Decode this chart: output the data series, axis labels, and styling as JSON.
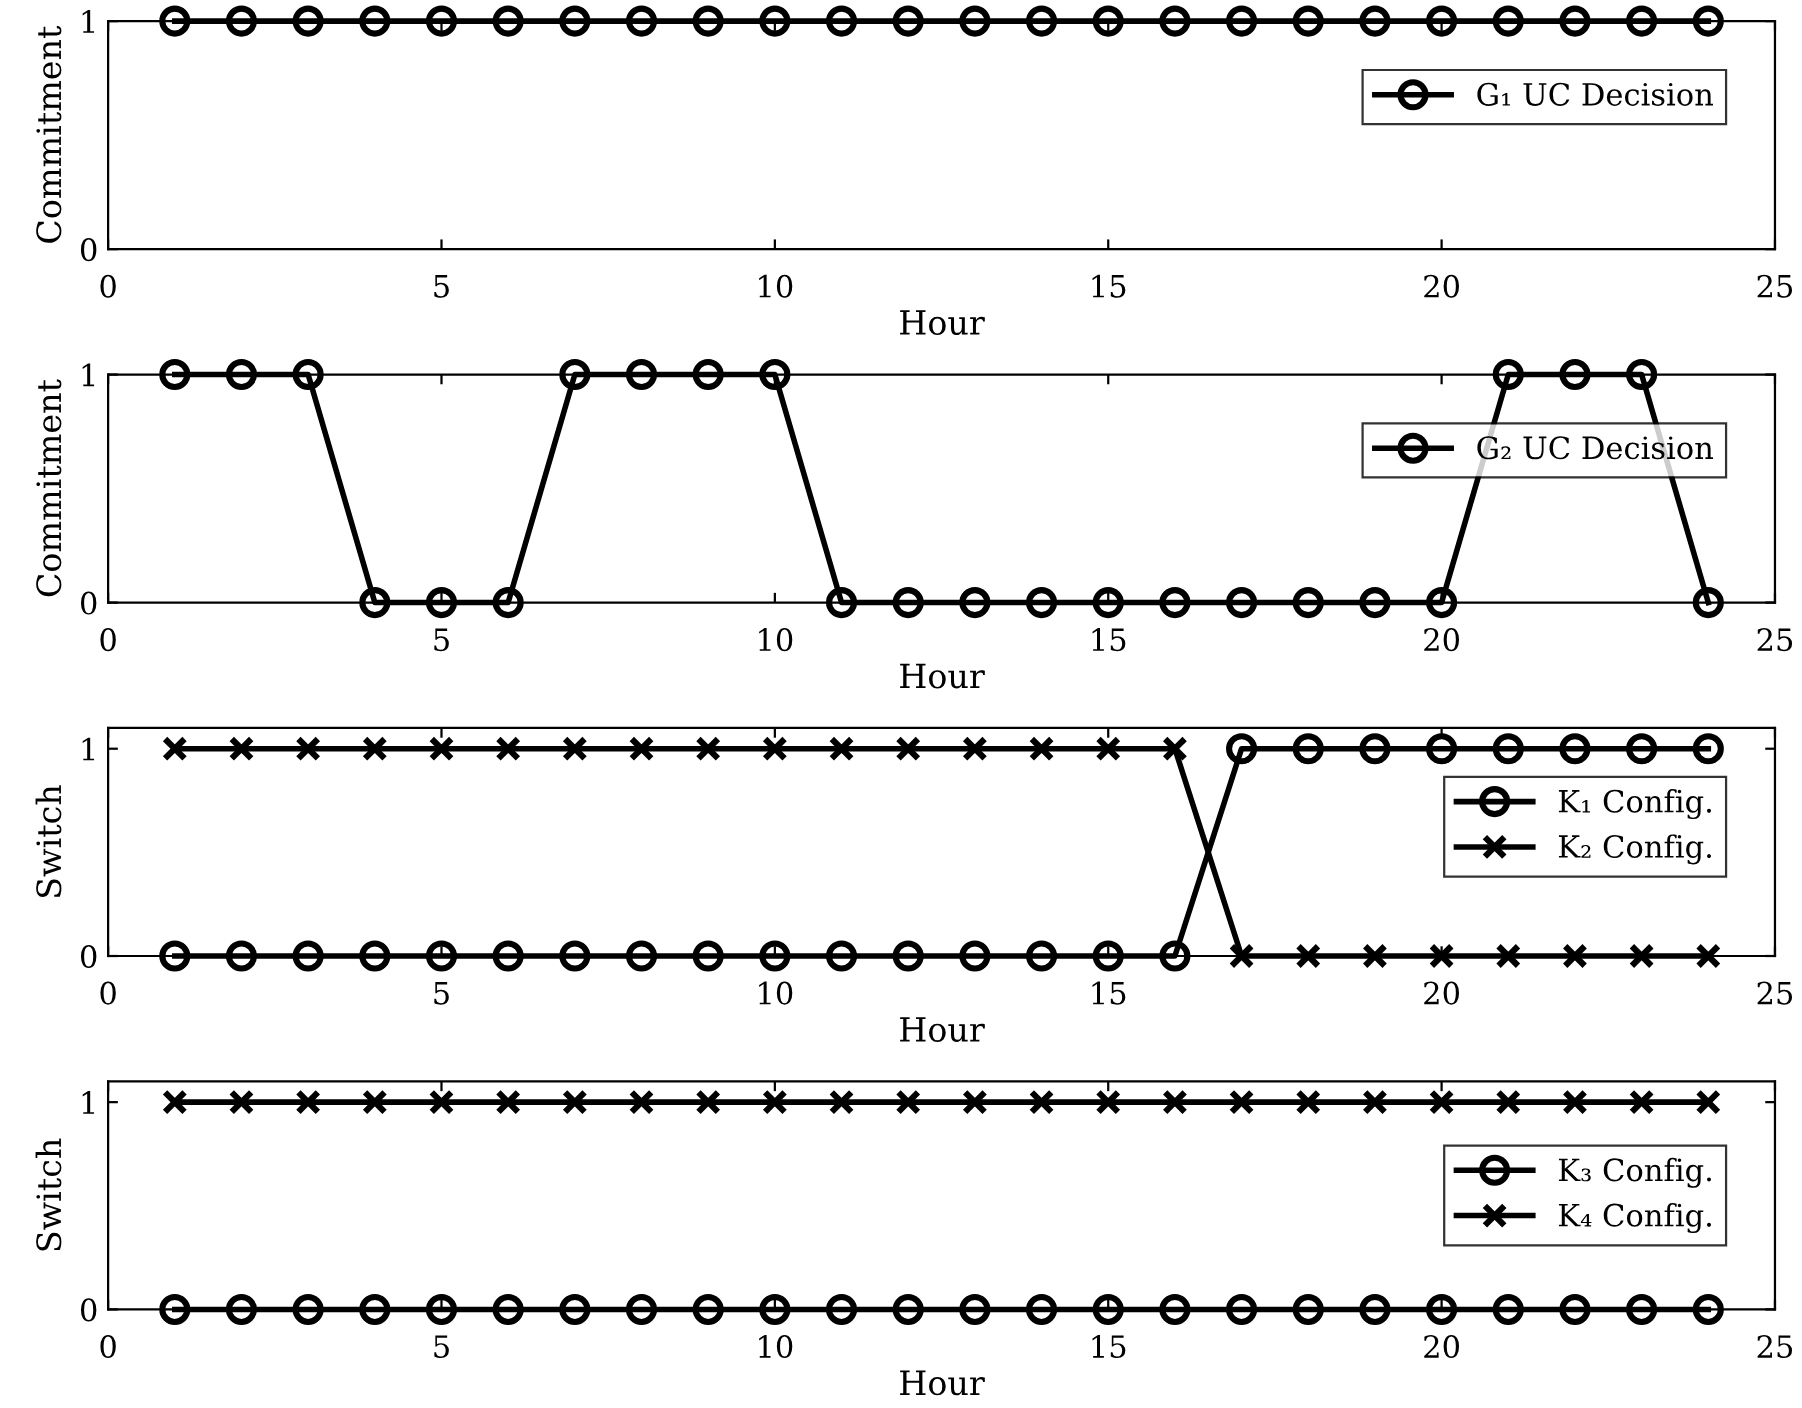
{
  "chart_data": [
    {
      "type": "line",
      "ylabel": "Commitment",
      "xlabel": "Hour",
      "x": [
        1,
        2,
        3,
        4,
        5,
        6,
        7,
        8,
        9,
        10,
        11,
        12,
        13,
        14,
        15,
        16,
        17,
        18,
        19,
        20,
        21,
        22,
        23,
        24
      ],
      "xlim": [
        0,
        25
      ],
      "xticks": [
        0,
        5,
        10,
        15,
        20,
        25
      ],
      "ylim": [
        0,
        1
      ],
      "yticks": [
        0,
        1
      ],
      "grid": false,
      "legend": "top right",
      "series": [
        {
          "name": "G₁ UC Decision",
          "color": "#000000",
          "marker": "circle",
          "values": [
            1,
            1,
            1,
            1,
            1,
            1,
            1,
            1,
            1,
            1,
            1,
            1,
            1,
            1,
            1,
            1,
            1,
            1,
            1,
            1,
            1,
            1,
            1,
            1
          ]
        }
      ]
    },
    {
      "type": "line",
      "ylabel": "Commitment",
      "xlabel": "Hour",
      "x": [
        1,
        2,
        3,
        4,
        5,
        6,
        7,
        8,
        9,
        10,
        11,
        12,
        13,
        14,
        15,
        16,
        17,
        18,
        19,
        20,
        21,
        22,
        23,
        24
      ],
      "xlim": [
        0,
        25
      ],
      "xticks": [
        0,
        5,
        10,
        15,
        20,
        25
      ],
      "ylim": [
        0,
        1
      ],
      "yticks": [
        0,
        1
      ],
      "grid": false,
      "legend": "top right",
      "series": [
        {
          "name": "G₂ UC Decision",
          "color": "#000000",
          "marker": "circle",
          "values": [
            1,
            1,
            1,
            0,
            0,
            0,
            1,
            1,
            1,
            1,
            0,
            0,
            0,
            0,
            0,
            0,
            0,
            0,
            0,
            0,
            1,
            1,
            1,
            0
          ]
        }
      ]
    },
    {
      "type": "line",
      "ylabel": "Switch",
      "xlabel": "Hour",
      "x": [
        1,
        2,
        3,
        4,
        5,
        6,
        7,
        8,
        9,
        10,
        11,
        12,
        13,
        14,
        15,
        16,
        17,
        18,
        19,
        20,
        21,
        22,
        23,
        24
      ],
      "xlim": [
        0,
        25
      ],
      "xticks": [
        0,
        5,
        10,
        15,
        20,
        25
      ],
      "ylim": [
        0,
        1.1
      ],
      "yticks": [
        0,
        1
      ],
      "grid": false,
      "legend": "top right",
      "series": [
        {
          "name": "K₁ Config.",
          "color": "#000000",
          "marker": "circle",
          "values": [
            0,
            0,
            0,
            0,
            0,
            0,
            0,
            0,
            0,
            0,
            0,
            0,
            0,
            0,
            0,
            0,
            1,
            1,
            1,
            1,
            1,
            1,
            1,
            1
          ]
        },
        {
          "name": "K₂ Config.",
          "color": "#000000",
          "marker": "cross",
          "values": [
            1,
            1,
            1,
            1,
            1,
            1,
            1,
            1,
            1,
            1,
            1,
            1,
            1,
            1,
            1,
            1,
            0,
            0,
            0,
            0,
            0,
            0,
            0,
            0
          ]
        }
      ]
    },
    {
      "type": "line",
      "ylabel": "Switch",
      "xlabel": "Hour",
      "x": [
        1,
        2,
        3,
        4,
        5,
        6,
        7,
        8,
        9,
        10,
        11,
        12,
        13,
        14,
        15,
        16,
        17,
        18,
        19,
        20,
        21,
        22,
        23,
        24
      ],
      "xlim": [
        0,
        25
      ],
      "xticks": [
        0,
        5,
        10,
        15,
        20,
        25
      ],
      "ylim": [
        0,
        1.1
      ],
      "yticks": [
        0,
        1
      ],
      "grid": false,
      "legend": "right",
      "series": [
        {
          "name": "K₃ Config.",
          "color": "#000000",
          "marker": "circle",
          "values": [
            0,
            0,
            0,
            0,
            0,
            0,
            0,
            0,
            0,
            0,
            0,
            0,
            0,
            0,
            0,
            0,
            0,
            0,
            0,
            0,
            0,
            0,
            0,
            0
          ]
        },
        {
          "name": "K₄ Config.",
          "color": "#000000",
          "marker": "cross",
          "values": [
            1,
            1,
            1,
            1,
            1,
            1,
            1,
            1,
            1,
            1,
            1,
            1,
            1,
            1,
            1,
            1,
            1,
            1,
            1,
            1,
            1,
            1,
            1,
            1
          ]
        }
      ]
    }
  ]
}
